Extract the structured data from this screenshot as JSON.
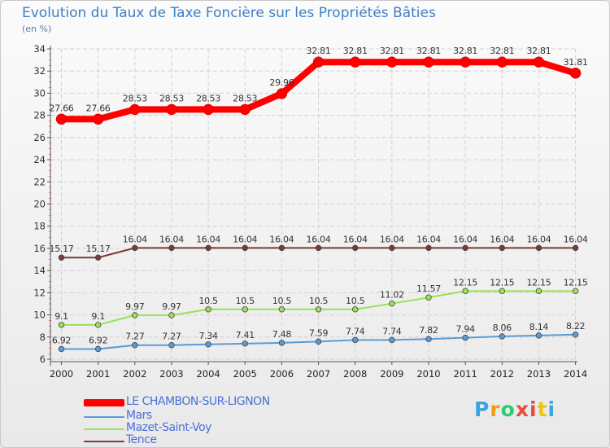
{
  "chart_data": {
    "type": "line",
    "title": "Evolution du Taux de Taxe Foncière sur les Propriétés Bâties",
    "ylabel": "(en %)",
    "xlabel": "",
    "ylim": [
      6,
      34
    ],
    "yticks": [
      6,
      8,
      10,
      12,
      14,
      16,
      18,
      20,
      22,
      24,
      26,
      28,
      30,
      32,
      34
    ],
    "categories": [
      "2000",
      "2001",
      "2002",
      "2003",
      "2004",
      "2005",
      "2006",
      "2007",
      "2008",
      "2009",
      "2010",
      "2011",
      "2012",
      "2013",
      "2014"
    ],
    "series": [
      {
        "name": "LE CHAMBON-SUR-LIGNON",
        "color": "#ff0000",
        "values": [
          27.66,
          27.66,
          28.53,
          28.53,
          28.53,
          28.53,
          29.96,
          32.81,
          32.81,
          32.81,
          32.81,
          32.81,
          32.81,
          32.81,
          31.81
        ],
        "labels": [
          "27.66",
          "27.66",
          "28.53",
          "28.53",
          "28.53",
          "28.53",
          "29.96",
          "32.81",
          "32.81",
          "32.81",
          "32.81",
          "32.81",
          "32.81",
          "32.81",
          "31.81"
        ]
      },
      {
        "name": "Mars",
        "color": "#5b9bd5",
        "values": [
          6.92,
          6.92,
          7.27,
          7.27,
          7.34,
          7.41,
          7.48,
          7.59,
          7.74,
          7.74,
          7.82,
          7.94,
          8.06,
          8.14,
          8.22
        ],
        "labels": [
          "6.92",
          "6.92",
          "7.27",
          "7.27",
          "7.34",
          "7.41",
          "7.48",
          "7.59",
          "7.74",
          "7.74",
          "7.82",
          "7.94",
          "8.06",
          "8.14",
          "8.22"
        ]
      },
      {
        "name": "Mazet-Saint-Voy",
        "color": "#9be05a",
        "values": [
          9.1,
          9.1,
          9.97,
          9.97,
          10.5,
          10.5,
          10.5,
          10.5,
          10.5,
          11.02,
          11.57,
          12.15,
          12.15,
          12.15,
          12.15
        ],
        "labels": [
          "9.1",
          "9.1",
          "9.97",
          "9.97",
          "10.5",
          "10.5",
          "10.5",
          "10.5",
          "10.5",
          "11.02",
          "11.57",
          "12.15",
          "12.15",
          "12.15",
          "12.15"
        ]
      },
      {
        "name": "Tence",
        "color": "#7a3a3a",
        "values": [
          15.17,
          15.17,
          16.04,
          16.04,
          16.04,
          16.04,
          16.04,
          16.04,
          16.04,
          16.04,
          16.04,
          16.04,
          16.04,
          16.04,
          16.04
        ],
        "labels": [
          "15.17",
          "15.17",
          "16.04",
          "16.04",
          "16.04",
          "16.04",
          "16.04",
          "16.04",
          "16.04",
          "16.04",
          "16.04",
          "16.04",
          "16.04",
          "16.04",
          "16.04"
        ]
      }
    ],
    "legend_position": "bottom-left"
  },
  "logo": {
    "letters": [
      "P",
      "r",
      "o",
      "x",
      "i",
      "t",
      "i"
    ],
    "colors": [
      "#3ba4e0",
      "#f39c12",
      "#2ecc71",
      "#e74c3c",
      "#e74c3c",
      "#f1c40f",
      "#3ba4e0"
    ]
  }
}
